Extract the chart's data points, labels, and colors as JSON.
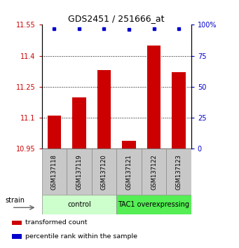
{
  "title": "GDS2451 / 251666_at",
  "samples": [
    "GSM137118",
    "GSM137119",
    "GSM137120",
    "GSM137121",
    "GSM137122",
    "GSM137123"
  ],
  "bar_values": [
    11.11,
    11.2,
    11.33,
    10.99,
    11.45,
    11.32
  ],
  "percentile_values": [
    97,
    97,
    97,
    96,
    97,
    97
  ],
  "y_min": 10.95,
  "y_max": 11.55,
  "y_ticks": [
    10.95,
    11.1,
    11.25,
    11.4,
    11.55
  ],
  "y_tick_labels": [
    "10.95",
    "11.1",
    "11.25",
    "11.4",
    "11.55"
  ],
  "right_y_ticks": [
    0,
    25,
    50,
    75,
    100
  ],
  "right_y_tick_labels": [
    "0",
    "25",
    "50",
    "75",
    "100%"
  ],
  "bar_color": "#cc0000",
  "dot_color": "#0000cc",
  "groups": [
    {
      "label": "control",
      "samples": [
        0,
        1,
        2
      ],
      "color": "#ccffcc"
    },
    {
      "label": "TAC1 overexpressing",
      "samples": [
        3,
        4,
        5
      ],
      "color": "#55ee55"
    }
  ],
  "strain_label": "strain",
  "legend_items": [
    {
      "color": "#cc0000",
      "label": "transformed count"
    },
    {
      "color": "#0000cc",
      "label": "percentile rank within the sample"
    }
  ],
  "bar_width": 0.55,
  "base_value": 10.95,
  "sample_box_color": "#c8c8c8",
  "fig_width": 3.41,
  "fig_height": 3.54,
  "dpi": 100
}
